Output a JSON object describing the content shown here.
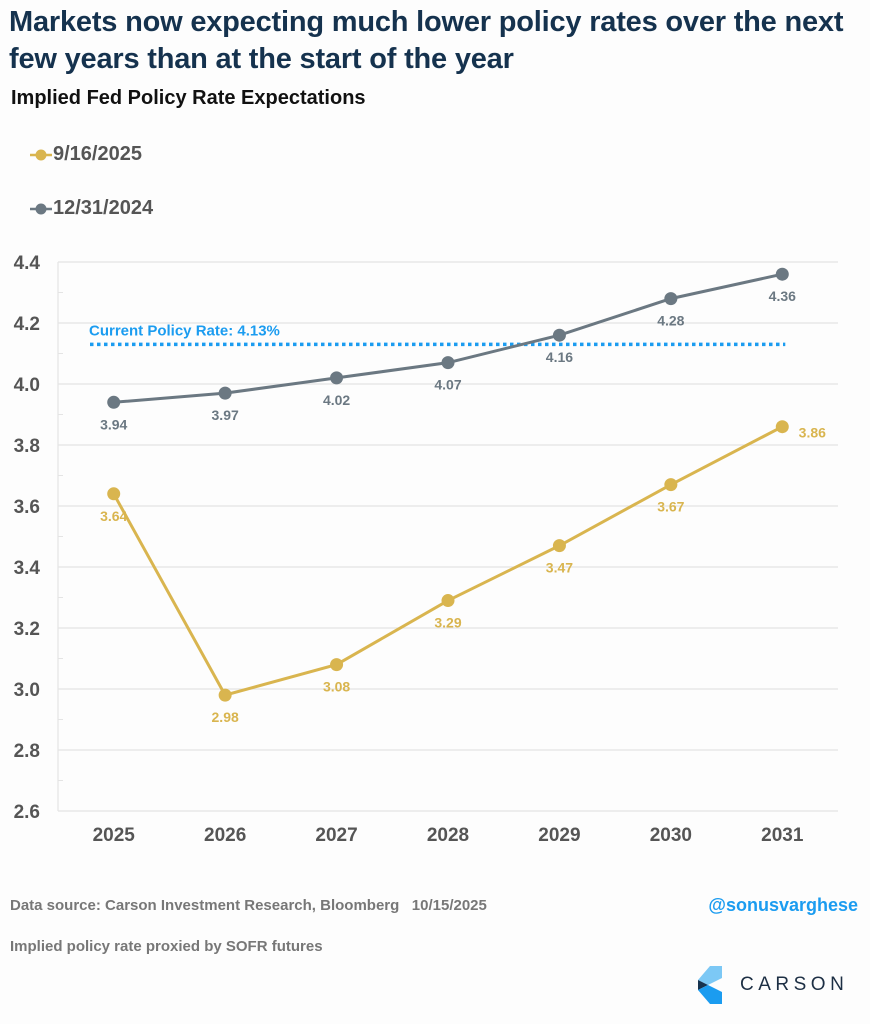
{
  "header": {
    "title": "Markets now expecting much lower policy rates over the next few years than at the start of the year",
    "subtitle": "Implied Fed Policy Rate Expectations"
  },
  "legend": [
    {
      "label": "9/16/2025",
      "color": "#d9b54f"
    },
    {
      "label": "12/31/2024",
      "color": "#6b7882"
    }
  ],
  "chart_data": {
    "type": "line",
    "title": "Implied Fed Policy Rate Expectations",
    "xlabel": "",
    "ylabel": "",
    "categories": [
      "2025",
      "2026",
      "2027",
      "2028",
      "2029",
      "2030",
      "2031"
    ],
    "series": [
      {
        "name": "9/16/2025",
        "color": "#d9b54f",
        "values": [
          3.64,
          2.98,
          3.08,
          3.29,
          3.47,
          3.67,
          3.86
        ]
      },
      {
        "name": "12/31/2024",
        "color": "#6b7882",
        "values": [
          3.94,
          3.97,
          4.02,
          4.07,
          4.16,
          4.28,
          4.36
        ]
      }
    ],
    "ylim": [
      2.6,
      4.4
    ],
    "yticks": [
      "2.6",
      "2.8",
      "3.0",
      "3.2",
      "3.4",
      "3.6",
      "3.8",
      "4.0",
      "4.2",
      "4.4"
    ],
    "grid": true,
    "legend_position": "top-left",
    "reference_line": {
      "label": "Current Policy Rate: 4.13%",
      "value": 4.13,
      "color": "#1b9cf0",
      "style": "dotted"
    }
  },
  "footer": {
    "source": "Data source: Carson Investment Research, Bloomberg   10/15/2025",
    "note": "Implied policy rate proxied by SOFR futures",
    "handle": "@sonusvarghese",
    "logo_text": "CARSON"
  }
}
